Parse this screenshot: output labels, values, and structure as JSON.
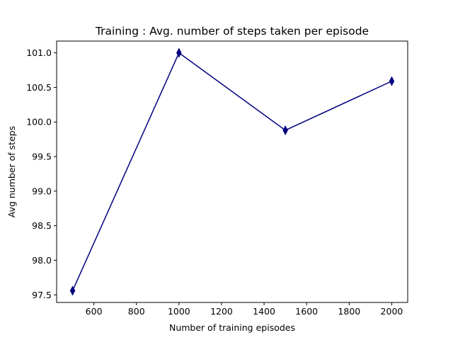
{
  "chart_data": {
    "type": "line",
    "title": "Training : Avg. number of steps taken per episode",
    "xlabel": "Number of training episodes",
    "ylabel": "Avg number of steps",
    "x": [
      500,
      1000,
      1500,
      2000
    ],
    "series": [
      {
        "values": [
          97.56,
          101.0,
          99.88,
          100.59
        ]
      }
    ],
    "xlim": [
      425,
      2075
    ],
    "ylim": [
      97.39,
      101.17
    ],
    "xticks": [
      600,
      800,
      1000,
      1200,
      1400,
      1600,
      1800,
      2000
    ],
    "xtick_labels": [
      "600",
      "800",
      "1000",
      "1200",
      "1400",
      "1600",
      "1800",
      "2000"
    ],
    "yticks": [
      97.5,
      98.0,
      98.5,
      99.0,
      99.5,
      100.0,
      100.5,
      101.0
    ],
    "ytick_labels": [
      "97.5",
      "98.0",
      "98.5",
      "99.0",
      "99.5",
      "100.0",
      "100.5",
      "101.0"
    ],
    "line_color": "#000080",
    "marker": "thin_diamond",
    "grid": false,
    "legend": "none"
  }
}
